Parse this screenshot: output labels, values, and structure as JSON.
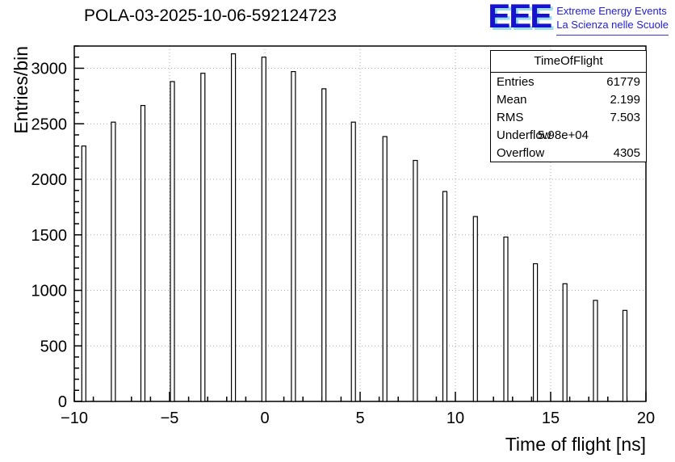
{
  "title": "POLA-03-2025-10-06-592124723",
  "logo": {
    "text": "EEE",
    "line1": "Extreme Energy Events",
    "line2": "La Scienza nelle Scuole",
    "blue": "#1612cf",
    "cyan": "#9adcf0"
  },
  "stats": {
    "title": "TimeOfFlight",
    "rows": [
      {
        "label": "Entries",
        "value": "61779"
      },
      {
        "label": "Mean",
        "value": "2.199"
      },
      {
        "label": "RMS",
        "value": "7.503"
      },
      {
        "label": "Underflow",
        "value": "5.98e+04"
      },
      {
        "label": "Overflow",
        "value": "4305"
      }
    ]
  },
  "axes": {
    "xticks": [
      {
        "v": -10,
        "label": "−10"
      },
      {
        "v": -5,
        "label": "−5"
      },
      {
        "v": 0,
        "label": "0"
      },
      {
        "v": 5,
        "label": "5"
      },
      {
        "v": 10,
        "label": "10"
      },
      {
        "v": 15,
        "label": "15"
      },
      {
        "v": 20,
        "label": "20"
      }
    ],
    "yticks": [
      {
        "v": 0,
        "label": "0"
      },
      {
        "v": 500,
        "label": "500"
      },
      {
        "v": 1000,
        "label": "1000"
      },
      {
        "v": 1500,
        "label": "1500"
      },
      {
        "v": 2000,
        "label": "2000"
      },
      {
        "v": 2500,
        "label": "2500"
      },
      {
        "v": 3000,
        "label": "3000"
      }
    ]
  },
  "chart_data": {
    "type": "bar",
    "title": "POLA-03-2025-10-06-592124723",
    "xlabel": "Time of flight [ns]",
    "ylabel": "Entries/bin",
    "xlim": [
      -10,
      20
    ],
    "ylim": [
      0,
      3200
    ],
    "grid": true,
    "x": [
      -9.5,
      -7.95,
      -6.4,
      -4.85,
      -3.25,
      -1.65,
      -0.05,
      1.5,
      3.1,
      4.65,
      6.3,
      7.9,
      9.45,
      11.05,
      12.65,
      14.2,
      15.75,
      17.35,
      18.9
    ],
    "values": [
      2300,
      2515,
      2665,
      2880,
      2955,
      3130,
      3100,
      2970,
      2815,
      2515,
      2385,
      2170,
      1890,
      1665,
      1480,
      1240,
      1060,
      910,
      820
    ]
  }
}
